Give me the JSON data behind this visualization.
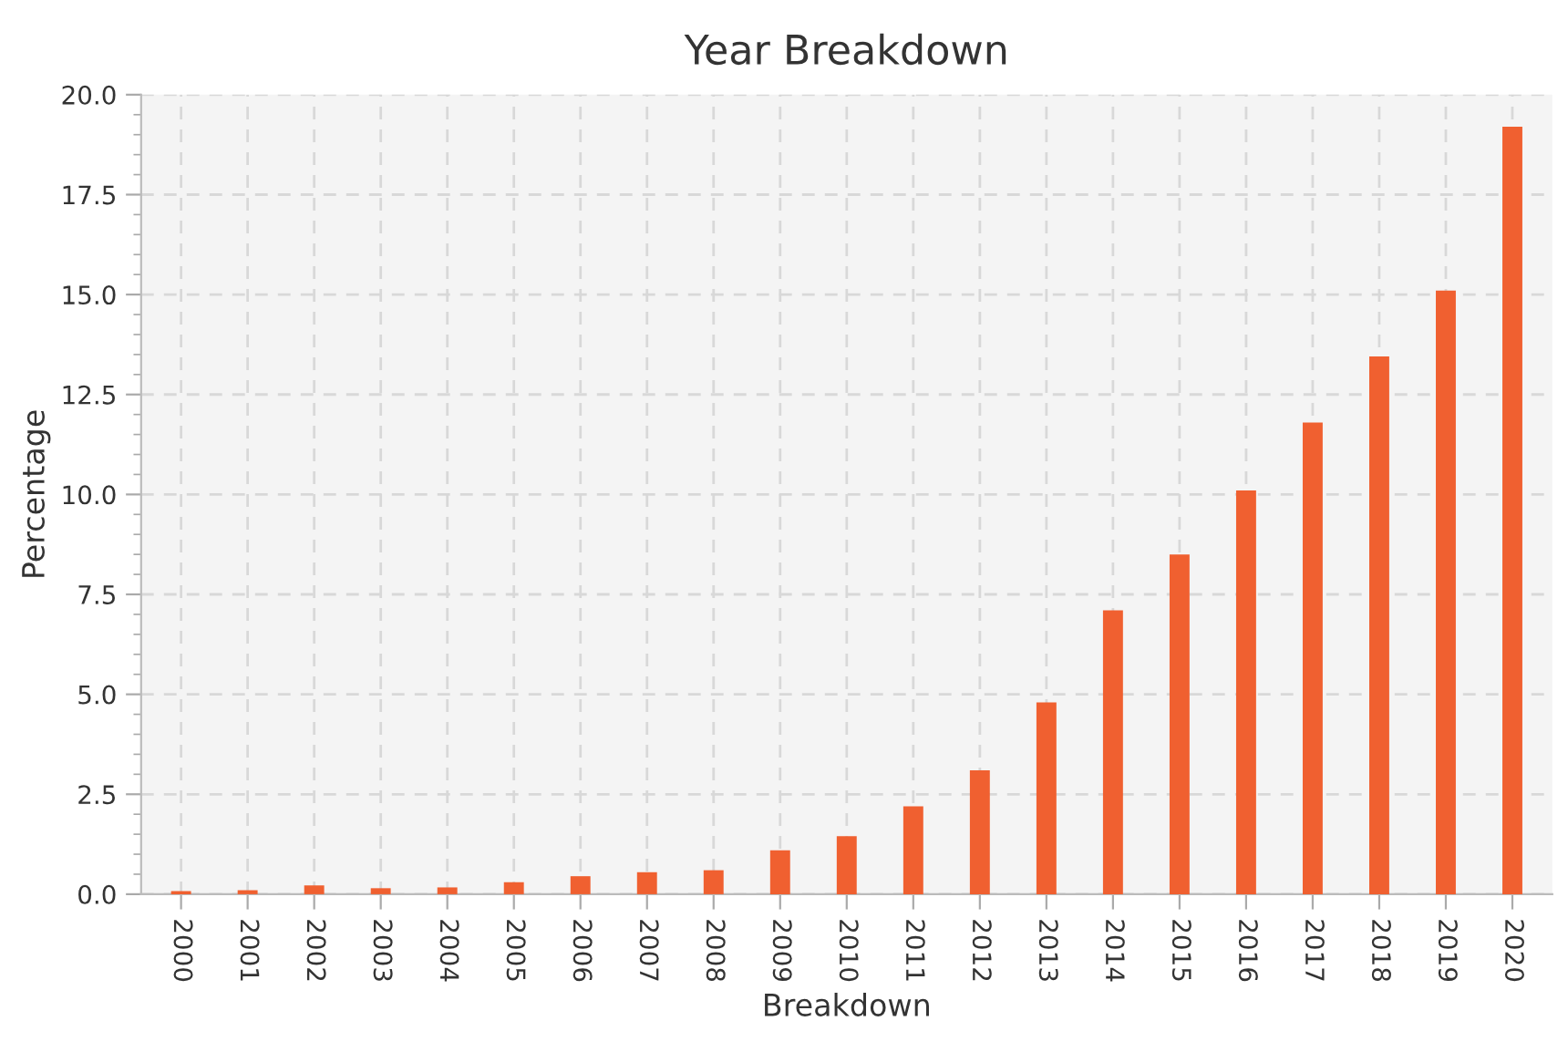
{
  "chart_data": {
    "type": "bar",
    "title": "Year Breakdown",
    "xlabel": "Breakdown",
    "ylabel": "Percentage",
    "categories": [
      "2000",
      "2001",
      "2002",
      "2003",
      "2004",
      "2005",
      "2006",
      "2007",
      "2008",
      "2009",
      "2010",
      "2011",
      "2012",
      "2013",
      "2014",
      "2015",
      "2016",
      "2017",
      "2018",
      "2019",
      "2020"
    ],
    "values": [
      0.08,
      0.1,
      0.22,
      0.15,
      0.17,
      0.3,
      0.45,
      0.55,
      0.6,
      1.1,
      1.45,
      2.2,
      3.1,
      4.8,
      7.1,
      8.5,
      10.1,
      11.8,
      13.45,
      15.1,
      19.2
    ],
    "color": "#f06030",
    "ylim": [
      0,
      20
    ],
    "yticks": [
      {
        "value": 0,
        "label": "0.0"
      },
      {
        "value": 2.5,
        "label": "2.5"
      },
      {
        "value": 5,
        "label": "5.0"
      },
      {
        "value": 7.5,
        "label": "7.5"
      },
      {
        "value": 10,
        "label": "10.0"
      },
      {
        "value": 12.5,
        "label": "12.5"
      },
      {
        "value": 15,
        "label": "15.0"
      },
      {
        "value": 17.5,
        "label": "17.5"
      },
      {
        "value": 20,
        "label": "20.0"
      }
    ],
    "grid": true
  }
}
